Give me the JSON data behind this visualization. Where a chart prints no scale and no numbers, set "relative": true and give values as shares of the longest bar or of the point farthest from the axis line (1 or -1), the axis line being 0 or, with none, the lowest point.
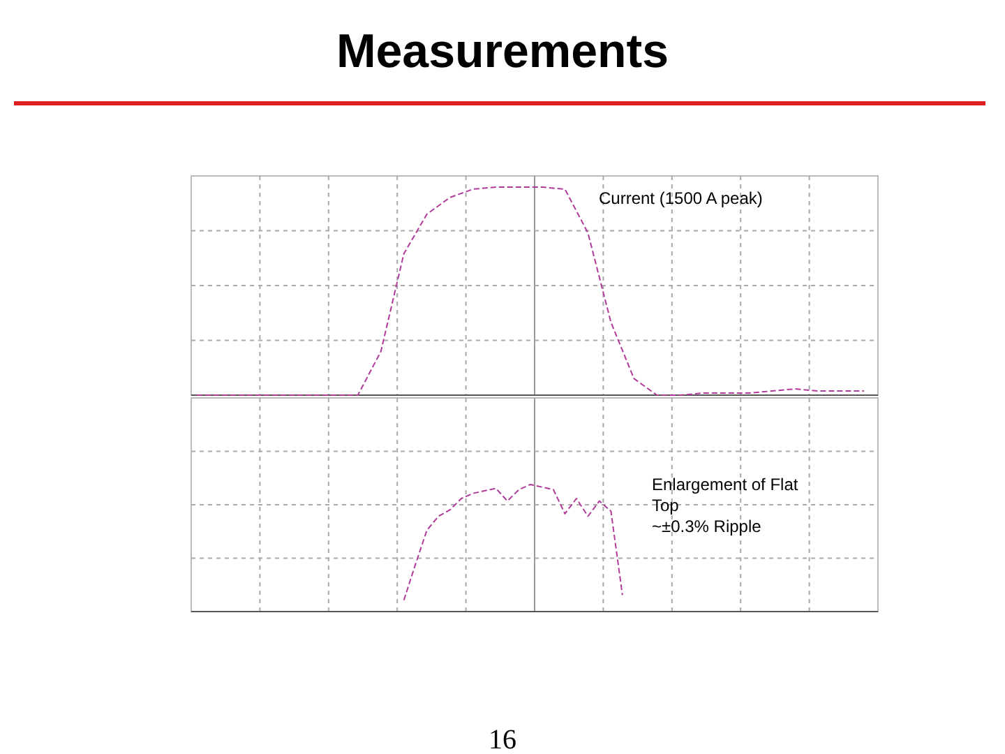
{
  "chart_data": [
    {
      "type": "line",
      "title": "Measurements",
      "relative": true,
      "grid": true,
      "color": "#b03a9a",
      "line_style": "dashed",
      "annotations": [
        "Current (1500 A peak)"
      ],
      "categories": [
        null,
        null,
        null,
        null,
        null,
        null,
        null,
        null,
        null,
        null,
        null,
        null,
        null,
        null,
        null,
        null,
        null,
        null,
        null,
        null,
        null,
        null,
        null,
        null,
        null,
        null,
        null,
        null,
        null,
        null
      ],
      "values": [
        0,
        0,
        0,
        0,
        0,
        0,
        0,
        0,
        0.21,
        0.68,
        0.87,
        0.95,
        0.99,
        1,
        1,
        1,
        0.99,
        0.78,
        0.35,
        0.08,
        0,
        0,
        0.01,
        0.01,
        0.01,
        0.02,
        0.03,
        0.02,
        0.02,
        0.02
      ]
    },
    {
      "type": "line",
      "relative": true,
      "grid": true,
      "color": "#b03a9a",
      "line_style": "dashed",
      "annotations": [
        "Enlargement of Flat Top ~±0.3% Ripple",
        "16"
      ],
      "categories": [
        null,
        null,
        null,
        null,
        null,
        null,
        null,
        null,
        null,
        null,
        null,
        null,
        null,
        null,
        null,
        null,
        null,
        null,
        null,
        null,
        null,
        null,
        null,
        null,
        null,
        null,
        null,
        null,
        null,
        null,
        null,
        null,
        null,
        null,
        null,
        null,
        null,
        null,
        null,
        null,
        null,
        null,
        null,
        null,
        null,
        null,
        null,
        null,
        null,
        null,
        null,
        null,
        null,
        null,
        null,
        null,
        null,
        null,
        null
      ],
      "values": [
        null,
        null,
        null,
        null,
        null,
        null,
        null,
        null,
        null,
        null,
        null,
        null,
        null,
        null,
        null,
        null,
        null,
        null,
        0.09,
        0.37,
        0.64,
        0.75,
        0.8,
        0.89,
        0.93,
        0.95,
        0.97,
        0.87,
        0.96,
        1,
        0.98,
        0.96,
        0.77,
        0.89,
        0.75,
        0.87,
        0.79,
        0.13,
        null,
        null,
        null,
        null,
        null,
        null,
        null,
        null,
        null,
        null,
        null,
        null,
        null,
        null,
        null,
        null,
        null,
        null,
        null,
        null,
        null
      ]
    }
  ]
}
